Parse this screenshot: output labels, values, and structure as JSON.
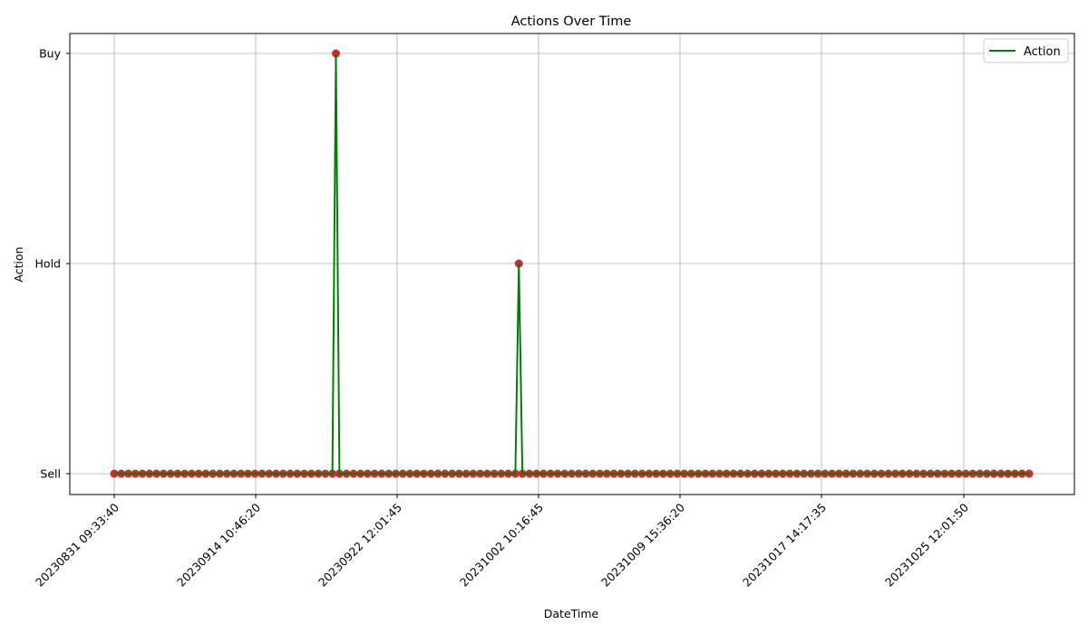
{
  "chart_data": {
    "type": "line",
    "title": "Actions Over Time",
    "xlabel": "DateTime",
    "ylabel": "Action",
    "y_categories": [
      "Sell",
      "Hold",
      "Buy"
    ],
    "x_ticks": [
      "20230831  09:33:40",
      "20230914  10:46:20",
      "20230922  12:01:45",
      "20231002  10:16:45",
      "20231009  15:36:20",
      "20231017  14:17:35",
      "20231025  12:01:50"
    ],
    "x_range_index": [
      0,
      130
    ],
    "grid": true,
    "legend_position": "top-right",
    "series": [
      {
        "name": "Action",
        "line_color": "#008000",
        "marker_color": "#d62728",
        "point_count": 130,
        "non_sell_points": [
          {
            "index": 31.5,
            "value": "Buy"
          },
          {
            "index": 57.5,
            "value": "Hold"
          }
        ],
        "default_value": "Sell"
      }
    ]
  }
}
